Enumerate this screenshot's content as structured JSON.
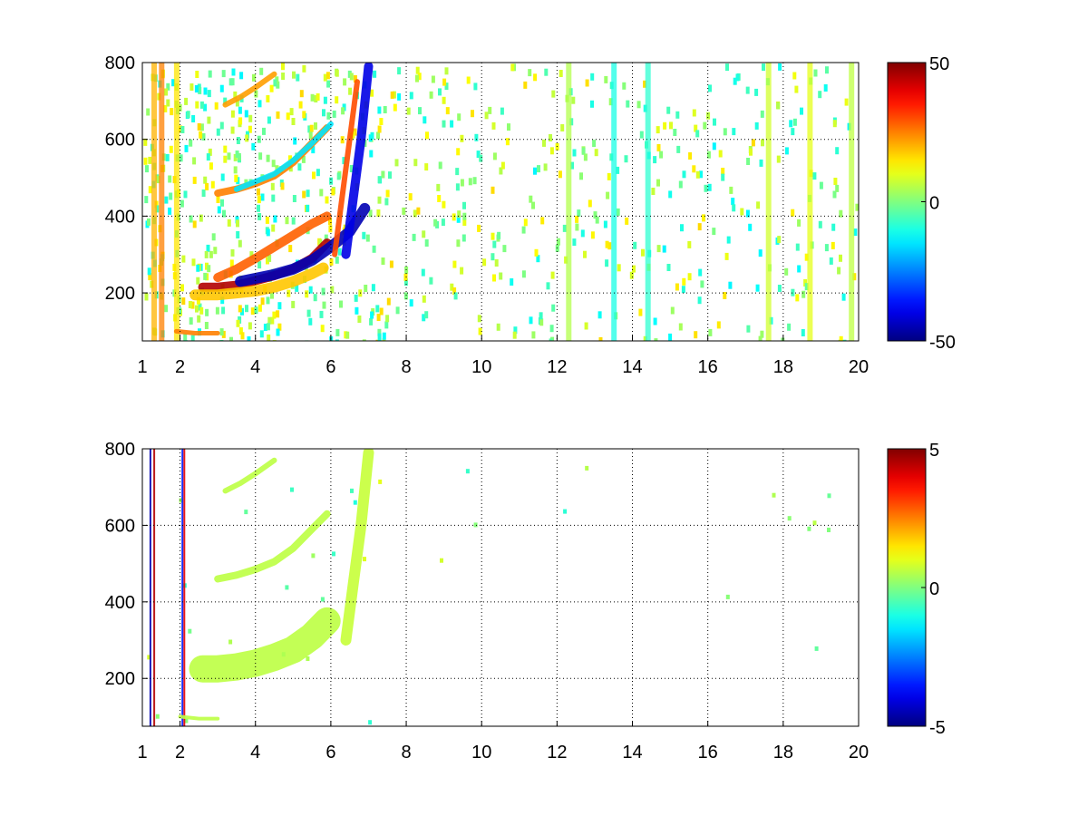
{
  "chart_data": [
    {
      "type": "heatmap",
      "title": "",
      "xlabel": "",
      "ylabel": "",
      "xlim": [
        1,
        20
      ],
      "ylim": [
        75,
        800
      ],
      "xticks": [
        "1",
        "2",
        "4",
        "6",
        "8",
        "10",
        "12",
        "14",
        "16",
        "18",
        "20"
      ],
      "yticks": [
        "200",
        "400",
        "600",
        "800"
      ],
      "grid": true,
      "colormap": "jet",
      "clim": [
        -50,
        50
      ],
      "colorbar_ticks": [
        "50",
        "0",
        "-50"
      ],
      "features": [
        {
          "kind": "curve",
          "x": [
            2.6,
            3.0,
            3.5,
            4.0,
            4.5,
            5.0,
            5.5,
            5.9
          ],
          "y": [
            215,
            215,
            220,
            232,
            245,
            262,
            290,
            330
          ],
          "value": 45,
          "width": 10
        },
        {
          "kind": "curve",
          "x": [
            3.6,
            4.0,
            4.5,
            5.0,
            5.5,
            6.0,
            6.5,
            6.9
          ],
          "y": [
            230,
            238,
            248,
            262,
            285,
            320,
            360,
            420
          ],
          "value": -45,
          "width": 12
        },
        {
          "kind": "curve",
          "x": [
            3.0,
            3.5,
            4.0,
            4.5,
            5.0,
            5.5,
            5.9
          ],
          "y": [
            240,
            262,
            290,
            320,
            350,
            380,
            400
          ],
          "value": 28,
          "width": 10
        },
        {
          "kind": "curve",
          "x": [
            2.4,
            3.0,
            3.5,
            4.0,
            4.5,
            5.0,
            5.5,
            5.8
          ],
          "y": [
            195,
            195,
            200,
            205,
            215,
            230,
            250,
            265
          ],
          "value": 18,
          "width": 12
        },
        {
          "kind": "curve",
          "x": [
            3.0,
            3.5,
            4.0,
            4.5,
            5.0,
            5.5,
            5.9
          ],
          "y": [
            460,
            470,
            485,
            505,
            540,
            590,
            630
          ],
          "value": 25,
          "width": 8
        },
        {
          "kind": "curve",
          "x": [
            3.5,
            4.0,
            4.5,
            5.0,
            5.5,
            6.0
          ],
          "y": [
            470,
            490,
            510,
            545,
            590,
            640
          ],
          "value": -15,
          "width": 6
        },
        {
          "kind": "curve",
          "x": [
            3.2,
            3.6,
            4.0,
            4.5
          ],
          "y": [
            690,
            710,
            735,
            770
          ],
          "value": 22,
          "width": 6
        },
        {
          "kind": "curve",
          "x": [
            6.4,
            6.6,
            6.8,
            7.0
          ],
          "y": [
            300,
            450,
            600,
            790
          ],
          "value": -40,
          "width": 10
        },
        {
          "kind": "curve",
          "x": [
            6.1,
            6.3,
            6.5,
            6.7
          ],
          "y": [
            300,
            450,
            600,
            750
          ],
          "value": 30,
          "width": 6
        },
        {
          "kind": "curve",
          "x": [
            1.9,
            2.4,
            3.0
          ],
          "y": [
            100,
            95,
            95
          ],
          "value": 25,
          "width": 5
        }
      ],
      "stripes": [
        {
          "x": 1.3,
          "value": 20
        },
        {
          "x": 1.5,
          "value": 25
        },
        {
          "x": 1.9,
          "value": 15
        },
        {
          "x": 12.3,
          "value": 5
        },
        {
          "x": 13.5,
          "value": -10
        },
        {
          "x": 14.4,
          "value": -8
        },
        {
          "x": 17.6,
          "value": 8
        },
        {
          "x": 18.7,
          "value": 10
        },
        {
          "x": 19.8,
          "value": 6
        }
      ]
    },
    {
      "type": "heatmap",
      "title": "",
      "xlabel": "",
      "ylabel": "",
      "xlim": [
        1,
        20
      ],
      "ylim": [
        75,
        800
      ],
      "xticks": [
        "1",
        "2",
        "4",
        "6",
        "8",
        "10",
        "12",
        "14",
        "16",
        "18",
        "20"
      ],
      "yticks": [
        "200",
        "400",
        "600",
        "800"
      ],
      "grid": true,
      "colormap": "jet",
      "clim": [
        -5,
        5
      ],
      "colorbar_ticks": [
        "5",
        "0",
        "-5"
      ],
      "features": [
        {
          "kind": "curve",
          "x": [
            2.6,
            3.0,
            3.5,
            4.0,
            4.5,
            5.0,
            5.5,
            5.9
          ],
          "y": [
            225,
            225,
            230,
            240,
            255,
            275,
            310,
            350
          ],
          "value": 0.6,
          "width": 30
        },
        {
          "kind": "curve",
          "x": [
            3.0,
            3.5,
            4.0,
            4.5,
            5.0,
            5.5,
            5.9
          ],
          "y": [
            460,
            470,
            485,
            505,
            540,
            590,
            630
          ],
          "value": 0.6,
          "width": 8
        },
        {
          "kind": "curve",
          "x": [
            3.2,
            3.6,
            4.0,
            4.5
          ],
          "y": [
            690,
            710,
            735,
            770
          ],
          "value": 0.6,
          "width": 6
        },
        {
          "kind": "curve",
          "x": [
            6.4,
            6.6,
            6.8,
            7.0
          ],
          "y": [
            300,
            450,
            600,
            790
          ],
          "value": 0.7,
          "width": 12
        },
        {
          "kind": "curve",
          "x": [
            2.0,
            2.5,
            3.0
          ],
          "y": [
            100,
            95,
            95
          ],
          "value": 0.6,
          "width": 4
        }
      ],
      "stripes": [
        {
          "x": 1.25,
          "value": -4.5
        },
        {
          "x": 1.35,
          "value": 4.5
        },
        {
          "x": 2.1,
          "value": -3.5
        },
        {
          "x": 2.15,
          "value": 4.0
        }
      ]
    }
  ]
}
